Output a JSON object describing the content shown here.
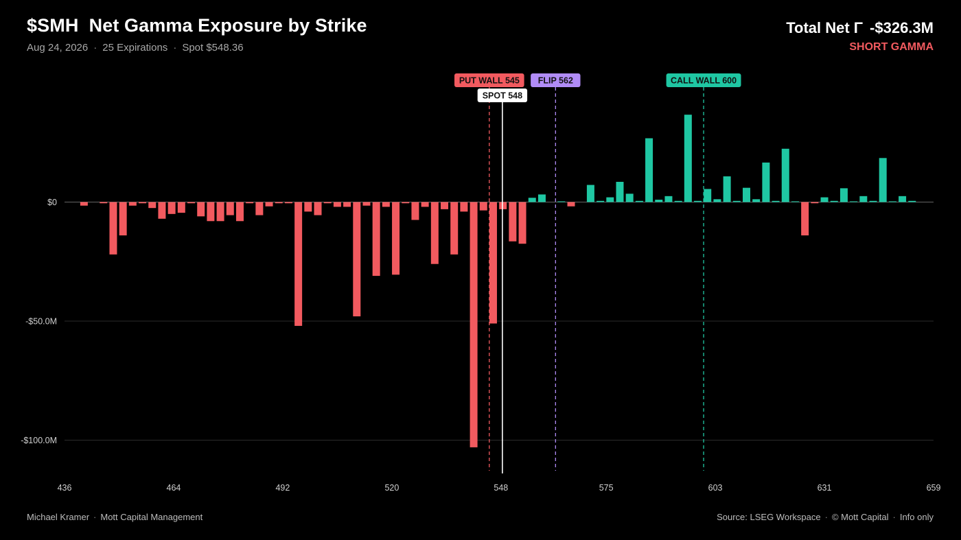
{
  "header": {
    "title": "$SMH  Net Gamma Exposure by Strike",
    "date": "Aug 24, 2026",
    "expirations": "25 Expirations",
    "spot": "Spot $548.36",
    "total_label": "Total Net Γ",
    "total_value": "-$326.3M",
    "regime": "SHORT GAMMA"
  },
  "footer": {
    "author": "Michael Kramer",
    "firm": "Mott Capital Management",
    "source": "Source: LSEG Workspace",
    "copyright": "© Mott Capital",
    "disclaimer": "Info only"
  },
  "colors": {
    "positive": "#1fc7a3",
    "negative": "#f25a5f",
    "put_wall": "#f25a5f",
    "spot": "#ffffff",
    "flip": "#b18cf7",
    "call_wall": "#1fc7a3",
    "grid": "#2a2a2a",
    "zero_line": "#666666"
  },
  "chart_data": {
    "type": "bar",
    "xlim": [
      436,
      659
    ],
    "ylim": [
      -113,
      37
    ],
    "x_ticks": [
      436,
      464,
      492,
      520,
      548,
      575,
      603,
      631,
      659
    ],
    "y_ticks": [
      {
        "value": 0,
        "label": "$0"
      },
      {
        "value": -50,
        "label": "-$50.0M"
      },
      {
        "value": -100,
        "label": "-$100.0M"
      }
    ],
    "unit": "$M",
    "x": [
      441,
      446,
      451,
      456,
      461,
      466,
      471,
      476,
      481,
      486,
      491,
      496,
      501,
      506,
      511,
      516,
      521,
      526,
      531,
      536,
      541,
      546,
      551,
      556,
      561,
      566,
      571,
      576,
      581,
      586,
      591,
      596,
      601,
      606,
      611,
      616,
      621,
      626,
      631,
      636,
      641,
      646,
      651,
      656,
      443.5,
      448.5,
      453.5,
      458.5,
      463.5,
      468.5,
      473.5,
      478.5,
      483.5,
      488.5,
      493.5,
      498.5,
      503.5,
      508.5,
      513.5,
      518.5,
      523.5,
      528.5,
      533.5,
      538.5,
      543.5,
      548.5,
      553.5,
      558.5,
      563.5,
      568.5,
      573.5,
      578.5,
      583.5,
      588.5,
      593.5,
      598.5,
      603.5,
      608.5,
      613.5,
      618.5,
      623.5,
      628.5,
      633.5,
      638.5,
      643.5,
      648.5,
      653.5
    ],
    "values": [
      -1.5,
      -0.5,
      -14,
      -0.5,
      -7,
      -4.5,
      -6,
      -8,
      -8,
      -5.5,
      -0.5,
      -52,
      -5.5,
      -2,
      -48,
      -31,
      -30.5,
      -7.5,
      -26,
      -22,
      -103,
      -51,
      -16.5,
      1.8,
      0,
      -1.8,
      7.2,
      2,
      3.5,
      26.8,
      2.5,
      36.7,
      5.5,
      10.8,
      6,
      16.6,
      22.4,
      -14,
      2,
      5.8,
      2.5,
      18.5,
      2.5,
      0,
      0,
      -22,
      -1.5,
      -2.5,
      -5,
      -0.5,
      -8,
      -5.5,
      -0.5,
      -1.8,
      -0.5,
      -4,
      -0.5,
      -2,
      -1.5,
      -2,
      -0.5,
      -2,
      -3,
      -4,
      -3.5,
      -3,
      -17.5,
      3.2,
      0.3,
      0,
      0.5,
      8.5,
      0.5,
      1,
      0.5,
      0.5,
      1.2,
      0.5,
      1.2,
      0.5,
      0.3,
      -0.5,
      0.5,
      0.3,
      0.5,
      0.3,
      0.5
    ],
    "markers": [
      {
        "label": "PUT WALL 545",
        "x": 545,
        "kind": "put_wall",
        "dashed": true
      },
      {
        "label": "SPOT 548",
        "x": 548.36,
        "kind": "spot",
        "dashed": false
      },
      {
        "label": "FLIP 562",
        "x": 562,
        "kind": "flip",
        "dashed": true
      },
      {
        "label": "CALL WALL 600",
        "x": 600,
        "kind": "call_wall",
        "dashed": true
      }
    ]
  }
}
